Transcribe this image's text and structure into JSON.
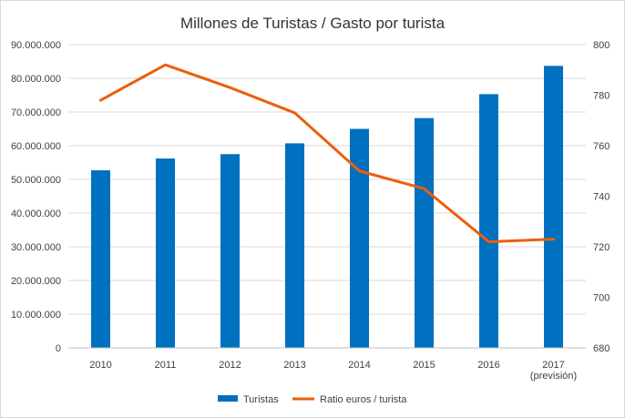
{
  "chart_data": {
    "type": "bar",
    "title": "Millones de Turistas / Gasto por turista",
    "categories": [
      "2010",
      "2011",
      "2012",
      "2013",
      "2014",
      "2015",
      "2016",
      "2017"
    ],
    "category_sublabels": [
      "",
      "",
      "",
      "",
      "",
      "",
      "",
      "(previsión)"
    ],
    "series": [
      {
        "name": "Turistas",
        "type": "bar",
        "axis": "left",
        "color": "#0070c0",
        "values": [
          52700000,
          56200000,
          57500000,
          60700000,
          65000000,
          68200000,
          75300000,
          83700000
        ]
      },
      {
        "name": "Ratio euros / turista",
        "type": "line",
        "axis": "right",
        "color": "#ed5e0b",
        "values": [
          778,
          792,
          783,
          773,
          750,
          743,
          722,
          723
        ]
      }
    ],
    "y_left": {
      "ylim": [
        0,
        90000000
      ],
      "ticks": [
        "0",
        "10.000.000",
        "20.000.000",
        "30.000.000",
        "40.000.000",
        "50.000.000",
        "60.000.000",
        "70.000.000",
        "80.000.000",
        "90.000.000"
      ]
    },
    "y_right": {
      "ylim": [
        680,
        800
      ],
      "ticks": [
        "680",
        "700",
        "720",
        "740",
        "760",
        "780",
        "800"
      ]
    },
    "grid": true,
    "legend": "bottom",
    "xlabel": "",
    "ylabel": ""
  }
}
